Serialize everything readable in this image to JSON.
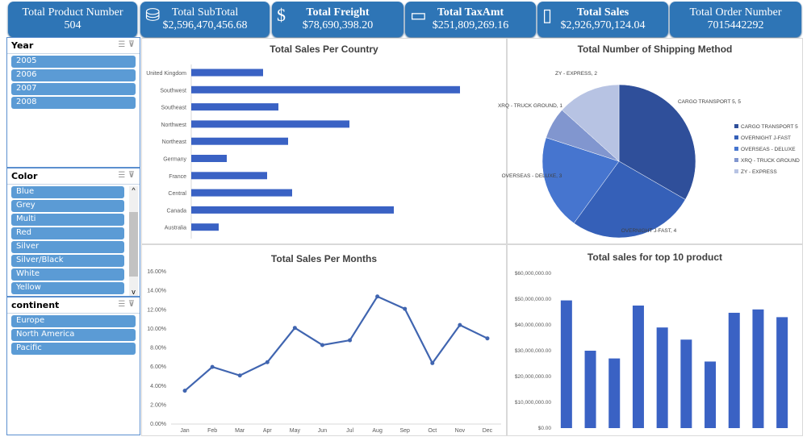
{
  "kpis": [
    {
      "title": "Total Product Number",
      "value": "504",
      "icon": ""
    },
    {
      "title": "Total SubTotal",
      "value": "$2,596,470,456.68",
      "icon": "coins-icon"
    },
    {
      "title": "Total Freight",
      "value": "$78,690,398.20",
      "icon": "dollar-icon"
    },
    {
      "title": "Total TaxAmt",
      "value": "$251,809,269.16",
      "icon": "banknote-icon"
    },
    {
      "title": "Total Sales",
      "value": "$2,926,970,124.04",
      "icon": "wallet-icon"
    },
    {
      "title": "Total Order Number",
      "value": "7015442292",
      "icon": ""
    }
  ],
  "slicers": {
    "year": {
      "title": "Year",
      "items": [
        "2005",
        "2006",
        "2007",
        "2008"
      ]
    },
    "color": {
      "title": "Color",
      "items": [
        "Blue",
        "Grey",
        "Multi",
        "Red",
        "Silver",
        "Silver/Black",
        "White",
        "Yellow"
      ]
    },
    "continent": {
      "title": "continent",
      "items": [
        "Europe",
        "North America",
        "Pacific"
      ]
    }
  },
  "colors": {
    "accent": "#2e75b6",
    "slicer_item": "#5b9bd5",
    "bar": "#3a62c4"
  },
  "chart_data": [
    {
      "type": "bar",
      "orientation": "horizontal",
      "title": "Total Sales Per Country",
      "categories": [
        "United Kingdom",
        "Southwest",
        "Southeast",
        "Northwest",
        "Northeast",
        "Germany",
        "France",
        "Central",
        "Canada",
        "Australia"
      ],
      "values": [
        89,
        333,
        108,
        196,
        120,
        44,
        94,
        125,
        251,
        34
      ],
      "grid": false
    },
    {
      "type": "pie",
      "title": "Total Number of Shipping Method",
      "categories": [
        "CARGO TRANSPORT 5",
        "OVERNIGHT J-FAST",
        "OVERSEAS - DELUXE",
        "XRQ - TRUCK GROUND",
        "ZY - EXPRESS"
      ],
      "values": [
        5,
        4,
        3,
        1,
        2
      ],
      "data_labels": [
        "CARGO TRANSPORT 5, 5",
        "OVERNIGHT J-FAST, 4",
        "OVERSEAS - DELUXE, 3",
        "XRQ - TRUCK GROUND, 1",
        "ZY - EXPRESS, 2"
      ],
      "legend": "right"
    },
    {
      "type": "line",
      "title": "Total Sales Per Months",
      "categories": [
        "Jan",
        "Feb",
        "Mar",
        "Apr",
        "May",
        "Jun",
        "Jul",
        "Aug",
        "Sep",
        "Oct",
        "Nov",
        "Dec"
      ],
      "values": [
        3.5,
        6.0,
        5.1,
        6.5,
        10.1,
        8.3,
        8.8,
        13.4,
        12.1,
        6.4,
        10.4,
        9.0
      ],
      "ylim": [
        0,
        16
      ],
      "yticks": [
        "0.00%",
        "2.00%",
        "4.00%",
        "6.00%",
        "8.00%",
        "10.00%",
        "12.00%",
        "14.00%",
        "16.00%"
      ]
    },
    {
      "type": "bar",
      "title": "Total sales for top 10 product",
      "values": [
        49500000,
        30000000,
        27000000,
        47500000,
        39000000,
        34300000,
        25800000,
        44700000,
        46000000,
        43000000
      ],
      "ylim": [
        0,
        60000000
      ],
      "yticks": [
        "$0.00",
        "$10,000,000.00",
        "$20,000,000.00",
        "$30,000,000.00",
        "$40,000,000.00",
        "$50,000,000.00",
        "$60,000,000.00"
      ]
    }
  ]
}
